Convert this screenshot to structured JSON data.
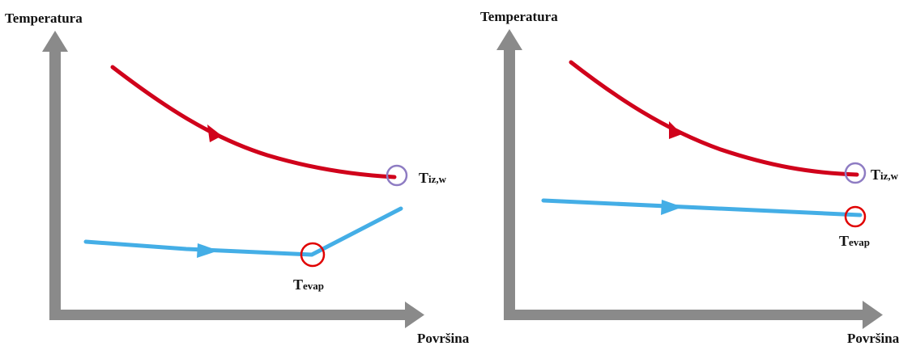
{
  "colors": {
    "axis": "#8a8a8a",
    "hot_stream": "#d0021b",
    "cold_stream": "#44aee6",
    "marker_ring_hot": "#8e7cc3",
    "marker_ring_cold": "#e00000",
    "text": "#111111"
  },
  "panels": [
    {
      "y_axis_label": "Temperatura",
      "x_axis_label": "Površina",
      "hot_outlet_label": {
        "main": "T",
        "sub": "iz,w"
      },
      "evap_label": {
        "main": "T",
        "sub": "evap"
      }
    },
    {
      "y_axis_label": "Temperatura",
      "x_axis_label": "Površina",
      "hot_outlet_label": {
        "main": "T",
        "sub": "iz,w"
      },
      "evap_label": {
        "main": "T",
        "sub": "evap"
      }
    }
  ]
}
